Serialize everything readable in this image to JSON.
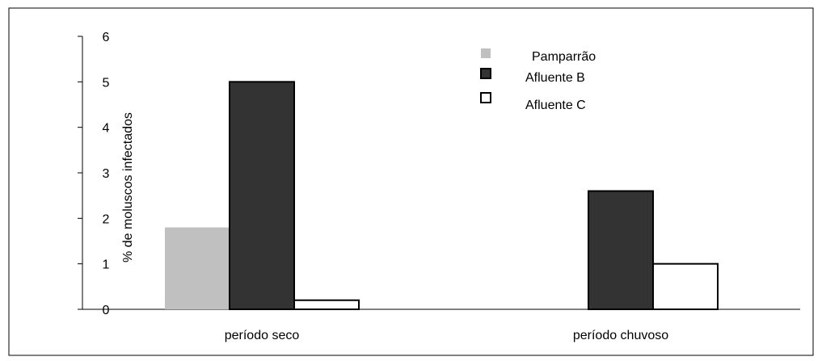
{
  "chart_data": {
    "type": "bar",
    "title": "",
    "xlabel": "",
    "ylabel": "% de moluscos infectados",
    "categories": [
      "período seco",
      "período chuvoso"
    ],
    "series": [
      {
        "name": "Pamparrão",
        "values": [
          1.8,
          0
        ],
        "color": "#c0c0c0"
      },
      {
        "name": "Afluente B",
        "values": [
          5.0,
          2.6
        ],
        "color": "#333333"
      },
      {
        "name": "Afluente C",
        "values": [
          0.2,
          1.0
        ],
        "color": "#ffffff"
      }
    ],
    "ylim": [
      0,
      6
    ],
    "yticks": [
      "0",
      "1",
      "2",
      "3",
      "4",
      "5",
      "6"
    ],
    "grid": false,
    "legend_position": "top-right"
  }
}
